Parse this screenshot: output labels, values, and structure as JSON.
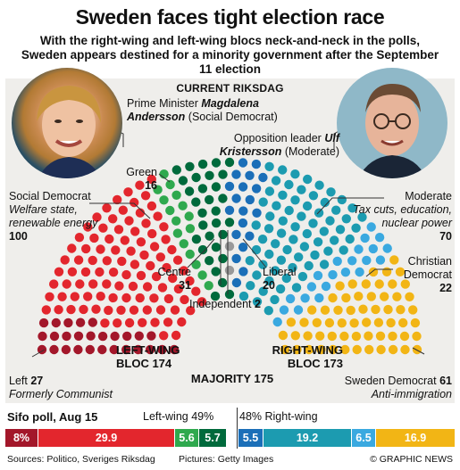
{
  "title": "Sweden faces tight election race",
  "subtitle": "With the right-wing and left-wing blocs neck-and-neck in the polls, Sweden appears destined for a minority government after the September 11 election",
  "section_title": "CURRENT RIKSDAG",
  "pm": {
    "role": "Prime Minister",
    "name": "Magdalena Andersson",
    "party": "(Social Democrat)"
  },
  "opposition": {
    "role": "Opposition leader",
    "name": "Ulf Kristersson",
    "party": "(Moderate)"
  },
  "parties": {
    "left": {
      "name": "Left",
      "seats": "27",
      "desc": "Formerly Communist",
      "color": "#a3172a"
    },
    "social_democrat": {
      "name": "Social Democrat",
      "seats": "100",
      "desc": "Welfare state, renewable energy",
      "color": "#e3262d"
    },
    "green": {
      "name": "Green",
      "seats": "16",
      "color": "#2fa94e"
    },
    "centre": {
      "name": "Centre",
      "seats": "31",
      "color": "#006a3c"
    },
    "independent": {
      "name": "Independent",
      "seats": "2",
      "color": "#999999"
    },
    "liberal": {
      "name": "Liberal",
      "seats": "20",
      "color": "#1b6fb8"
    },
    "moderate": {
      "name": "Moderate",
      "seats": "70",
      "desc": "Tax cuts, education, nuclear power",
      "color": "#1c9bb0"
    },
    "christian_democrat": {
      "name": "Christian Democrat",
      "seats": "22",
      "color": "#3aa9e0"
    },
    "sweden_democrat": {
      "name": "Sweden Democrat",
      "seats": "61",
      "desc": "Anti-immigration",
      "color": "#f2b515"
    }
  },
  "blocs": {
    "left": {
      "label": "LEFT-WING",
      "value": "BLOC 174"
    },
    "right": {
      "label": "RIGHT-WING",
      "value": "BLOC 173"
    },
    "majority": "MAJORITY 175"
  },
  "poll": {
    "title": "Sifo poll, Aug 15",
    "left_label": "Left-wing 49%",
    "right_label": "48% Right-wing",
    "segments": [
      {
        "party": "Left",
        "value": "8%",
        "color": "#a3172a"
      },
      {
        "party": "Social Democrat",
        "value": "29.9",
        "color": "#e3262d"
      },
      {
        "party": "Green",
        "value": "5.6",
        "color": "#2fa94e"
      },
      {
        "party": "Centre",
        "value": "5.7",
        "color": "#006a3c"
      },
      {
        "party": "Liberal",
        "value": "5.5",
        "color": "#1b6fb8"
      },
      {
        "party": "Moderate",
        "value": "19.2",
        "color": "#1c9bb0"
      },
      {
        "party": "Christian Democrat",
        "value": "6.5",
        "color": "#3aa9e0"
      },
      {
        "party": "Sweden Democrat",
        "value": "16.9",
        "color": "#f2b515"
      }
    ]
  },
  "footer": {
    "sources": "Sources: Politico, Sveriges Riksdag",
    "pictures": "Pictures: Getty Images",
    "credit": "© GRAPHIC NEWS"
  }
}
